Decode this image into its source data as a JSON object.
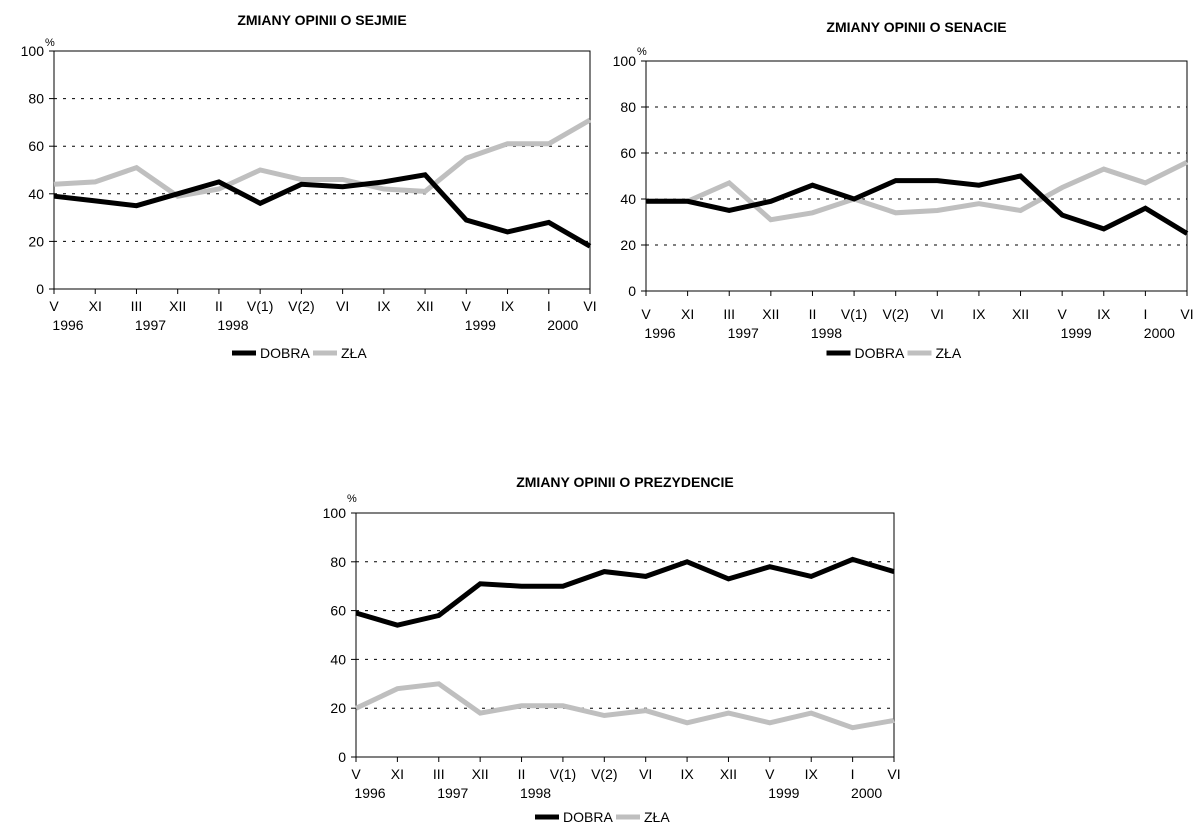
{
  "chart_data": [
    {
      "type": "line",
      "title": "ZMIANY OPINII O SEJMIE",
      "unit": "%",
      "ylim": [
        0,
        100
      ],
      "yticks": [
        "0",
        "20",
        "40",
        "60",
        "80",
        "100"
      ],
      "categories": [
        "V",
        "XI",
        "III",
        "XII",
        "II",
        "V(1)",
        "V(2)",
        "VI",
        "IX",
        "XII",
        "V",
        "IX",
        "I",
        "VI"
      ],
      "years": [
        {
          "label": "1996",
          "index": 0
        },
        {
          "label": "1997",
          "index": 2
        },
        {
          "label": "1998",
          "index": 4
        },
        {
          "label": "1999",
          "index": 10
        },
        {
          "label": "2000",
          "index": 12
        }
      ],
      "series": [
        {
          "name": "DOBRA",
          "color": "#000000",
          "values": [
            39,
            37,
            35,
            40,
            45,
            36,
            44,
            43,
            45,
            48,
            29,
            24,
            28,
            18
          ]
        },
        {
          "name": "ZŁA",
          "color": "#bfbfbf",
          "values": [
            44,
            45,
            51,
            39,
            42,
            50,
            46,
            46,
            42,
            41,
            55,
            61,
            61,
            71
          ]
        }
      ],
      "grid": true,
      "legend": "bottom"
    },
    {
      "type": "line",
      "title": "ZMIANY OPINII O SENACIE",
      "unit": "%",
      "ylim": [
        0,
        100
      ],
      "yticks": [
        "0",
        "20",
        "40",
        "60",
        "80",
        "100"
      ],
      "categories": [
        "V",
        "XI",
        "III",
        "XII",
        "II",
        "V(1)",
        "V(2)",
        "VI",
        "IX",
        "XII",
        "V",
        "IX",
        "I",
        "VI"
      ],
      "years": [
        {
          "label": "1996",
          "index": 0
        },
        {
          "label": "1997",
          "index": 2
        },
        {
          "label": "1998",
          "index": 4
        },
        {
          "label": "1999",
          "index": 10
        },
        {
          "label": "2000",
          "index": 12
        }
      ],
      "series": [
        {
          "name": "DOBRA",
          "color": "#000000",
          "values": [
            39,
            39,
            35,
            39,
            46,
            40,
            48,
            48,
            46,
            50,
            33,
            27,
            36,
            25
          ]
        },
        {
          "name": "ZŁA",
          "color": "#bfbfbf",
          "values": [
            39,
            39,
            47,
            31,
            34,
            40,
            34,
            35,
            38,
            35,
            45,
            53,
            47,
            56
          ]
        }
      ],
      "grid": true,
      "legend": "bottom"
    },
    {
      "type": "line",
      "title": "ZMIANY OPINII O PREZYDENCIE",
      "unit": "%",
      "ylim": [
        0,
        100
      ],
      "yticks": [
        "0",
        "20",
        "40",
        "60",
        "80",
        "100"
      ],
      "categories": [
        "V",
        "XI",
        "III",
        "XII",
        "II",
        "V(1)",
        "V(2)",
        "VI",
        "IX",
        "XII",
        "V",
        "IX",
        "I",
        "VI"
      ],
      "years": [
        {
          "label": "1996",
          "index": 0
        },
        {
          "label": "1997",
          "index": 2
        },
        {
          "label": "1998",
          "index": 4
        },
        {
          "label": "1999",
          "index": 10
        },
        {
          "label": "2000",
          "index": 12
        }
      ],
      "series": [
        {
          "name": "DOBRA",
          "color": "#000000",
          "values": [
            59,
            54,
            58,
            71,
            70,
            70,
            76,
            74,
            80,
            73,
            78,
            74,
            81,
            76
          ]
        },
        {
          "name": "ZŁA",
          "color": "#bfbfbf",
          "values": [
            20,
            28,
            30,
            18,
            21,
            21,
            17,
            19,
            14,
            18,
            14,
            18,
            12,
            15
          ]
        }
      ],
      "grid": true,
      "legend": "bottom"
    }
  ]
}
